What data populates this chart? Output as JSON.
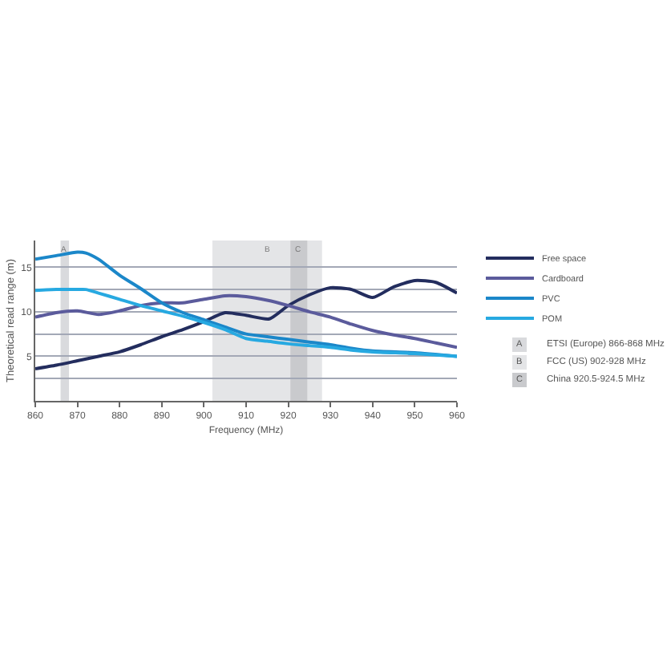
{
  "chart_data": {
    "type": "line",
    "xlabel": "Frequency (MHz)",
    "ylabel": "Theoretical read range (m)",
    "xlim": [
      860,
      960
    ],
    "xticks": [
      860,
      870,
      880,
      890,
      900,
      910,
      920,
      930,
      940,
      950,
      960
    ],
    "ylim": [
      0,
      18
    ],
    "yticks": [
      {
        "value": 2.5,
        "label": null
      },
      5,
      {
        "value": 7.5,
        "label": null
      },
      10,
      {
        "value": 12.5,
        "label": null
      },
      15
    ],
    "grid": "y",
    "legend": "right",
    "line_style": "solid",
    "series": [
      {
        "name": "Free space",
        "color": "#232d5e",
        "x": [
          860,
          865,
          870,
          875,
          880,
          885,
          890,
          895,
          900,
          905,
          910,
          915.5,
          920,
          925,
          930,
          935,
          940,
          945,
          950,
          955,
          960
        ],
        "values": [
          3.6,
          4.0,
          4.5,
          5.0,
          5.5,
          6.3,
          7.2,
          8.0,
          8.9,
          9.9,
          9.6,
          9.2,
          10.7,
          11.9,
          12.7,
          12.5,
          11.6,
          12.8,
          13.5,
          13.3,
          12.1
        ]
      },
      {
        "name": "Cardboard",
        "color": "#5b5b9c",
        "x": [
          860,
          865,
          870,
          875,
          880,
          885,
          890,
          895,
          900,
          905,
          910,
          915,
          920,
          925,
          930,
          935,
          940,
          945,
          950,
          955,
          960
        ],
        "values": [
          9.4,
          9.9,
          10.1,
          9.7,
          10.1,
          10.7,
          11.0,
          11.0,
          11.4,
          11.8,
          11.7,
          11.3,
          10.7,
          10.0,
          9.4,
          8.6,
          7.9,
          7.4,
          7.0,
          6.5,
          6.0
        ]
      },
      {
        "name": "PVC",
        "color": "#1b87c9",
        "x": [
          860,
          865,
          870,
          872,
          875,
          880,
          885,
          890,
          895,
          900,
          905,
          910,
          915,
          920,
          925,
          930,
          935,
          940,
          950,
          960
        ],
        "values": [
          15.9,
          16.3,
          16.7,
          16.6,
          15.9,
          14.1,
          12.6,
          11.0,
          9.9,
          9.1,
          8.3,
          7.5,
          7.2,
          6.9,
          6.6,
          6.3,
          5.9,
          5.6,
          5.4,
          5.0
        ]
      },
      {
        "name": "POM",
        "color": "#27a9e1",
        "x": [
          860,
          865,
          870,
          872,
          875,
          880,
          885,
          890,
          895,
          900,
          905,
          910,
          915,
          920,
          925,
          930,
          935,
          940,
          950,
          960
        ],
        "values": [
          12.4,
          12.5,
          12.5,
          12.5,
          12.1,
          11.4,
          10.7,
          10.1,
          9.5,
          8.8,
          8.0,
          7.0,
          6.7,
          6.4,
          6.2,
          6.0,
          5.7,
          5.5,
          5.3,
          5.0
        ]
      }
    ],
    "bands": [
      {
        "axis": "x",
        "from": 866,
        "to": 868,
        "label": "A",
        "color": "#d9dadd"
      },
      {
        "axis": "x",
        "from": 902,
        "to": 928,
        "label": "B",
        "color": "#e4e5e7"
      },
      {
        "axis": "x",
        "from": 920.5,
        "to": 924.5,
        "label": "C",
        "color": "#c9cacd"
      }
    ],
    "annotations": [
      "ETSI (Europe) 866-868 MHz",
      "FCC (US) 902-928 MHz",
      "China 920.5-924.5 MHz"
    ]
  }
}
